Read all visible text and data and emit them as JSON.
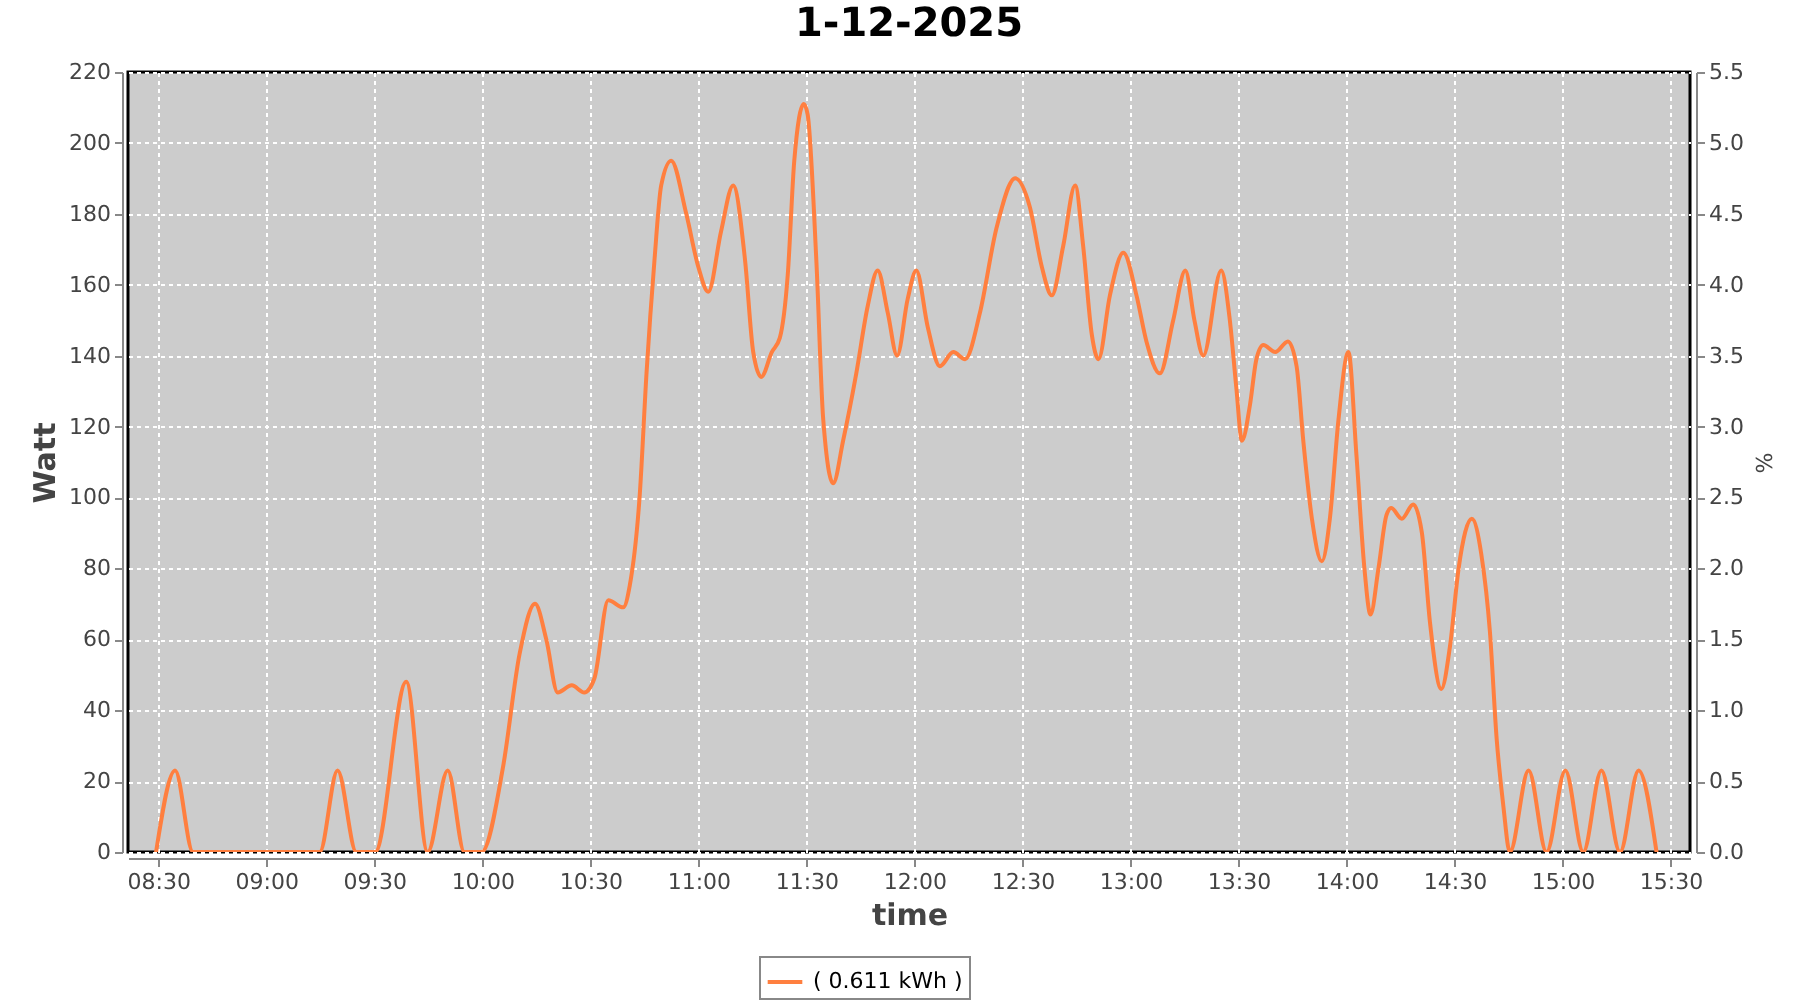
{
  "chart_data": {
    "type": "line",
    "title": "1-12-2025",
    "xlabel": "time",
    "ylabel": "Watt",
    "y2label": "%",
    "x": [
      8.49,
      8.578,
      8.661,
      9.247,
      9.33,
      9.417,
      9.504,
      9.648,
      9.747,
      9.84,
      9.917,
      9.997,
      10.096,
      10.173,
      10.244,
      10.296,
      10.349,
      10.414,
      10.472,
      10.519,
      10.583,
      10.652,
      10.682,
      10.729,
      10.76,
      10.797,
      10.828,
      10.874,
      10.944,
      11.0,
      11.046,
      11.105,
      11.161,
      11.216,
      11.254,
      11.291,
      11.34,
      11.377,
      11.414,
      11.444,
      11.488,
      11.506,
      11.546,
      11.578,
      11.624,
      11.67,
      11.731,
      11.784,
      11.83,
      11.877,
      11.92,
      11.969,
      12.009,
      12.062,
      12.118,
      12.18,
      12.235,
      12.303,
      12.38,
      12.467,
      12.534,
      12.59,
      12.636,
      12.689,
      12.744,
      12.781,
      12.821,
      12.852,
      12.905,
      12.967,
      13.028,
      13.074,
      13.136,
      13.198,
      13.254,
      13.296,
      13.337,
      13.42,
      13.46,
      13.49,
      13.516,
      13.553,
      13.583,
      13.615,
      13.67,
      13.729,
      13.769,
      13.8,
      13.84,
      13.886,
      13.923,
      13.963,
      14.009,
      14.046,
      14.083,
      14.111,
      14.148,
      14.185,
      14.207,
      14.256,
      14.309,
      14.349,
      14.386,
      14.439,
      14.479,
      14.519,
      14.58,
      14.624,
      14.664,
      14.695,
      14.726,
      14.756,
      14.843,
      14.926,
      15.013,
      15.096,
      15.18,
      15.266,
      15.352,
      15.435
    ],
    "series": [
      {
        "name": "( 0.611 kWh )",
        "color": "#ff7f3f",
        "values": [
          0,
          23,
          0,
          0,
          23,
          0,
          0,
          48,
          0,
          23,
          0,
          0,
          24,
          56,
          70,
          60,
          45,
          47,
          45,
          49,
          71,
          69,
          75,
          101,
          135,
          167,
          188,
          195,
          180,
          165,
          158,
          175,
          188,
          167,
          141,
          134,
          141,
          145,
          163,
          195,
          211,
          208,
          167,
          122,
          104,
          116,
          135,
          154,
          164,
          152,
          140,
          156,
          164,
          148,
          137,
          141,
          139,
          152,
          176,
          190,
          182,
          165,
          157,
          171,
          188,
          171,
          146,
          139,
          157,
          169,
          157,
          144,
          135,
          150,
          164,
          150,
          140,
          164,
          150,
          131,
          116,
          126,
          139,
          143,
          141,
          144,
          137,
          116,
          94,
          82,
          94,
          122,
          141,
          112,
          80,
          67,
          80,
          95,
          97,
          94,
          98,
          90,
          65,
          46,
          58,
          80,
          94,
          84,
          62,
          32,
          13,
          0,
          23,
          0,
          23,
          0,
          23,
          0,
          23,
          0
        ]
      }
    ],
    "xlim": [
      8.36,
      15.59
    ],
    "xticks": [
      {
        "value": 8.5,
        "label": "08:30"
      },
      {
        "value": 9,
        "label": "09:00"
      },
      {
        "value": 9.5,
        "label": "09:30"
      },
      {
        "value": 10,
        "label": "10:00"
      },
      {
        "value": 10.5,
        "label": "10:30"
      },
      {
        "value": 11,
        "label": "11:00"
      },
      {
        "value": 11.5,
        "label": "11:30"
      },
      {
        "value": 12,
        "label": "12:00"
      },
      {
        "value": 12.5,
        "label": "12:30"
      },
      {
        "value": 13,
        "label": "13:00"
      },
      {
        "value": 13.5,
        "label": "13:30"
      },
      {
        "value": 14,
        "label": "14:00"
      },
      {
        "value": 14.5,
        "label": "14:30"
      },
      {
        "value": 15,
        "label": "15:00"
      },
      {
        "value": 15.5,
        "label": "15:30"
      }
    ],
    "ylim": [
      0,
      220
    ],
    "yticks": [
      0,
      20,
      40,
      60,
      80,
      100,
      120,
      140,
      160,
      180,
      200,
      220
    ],
    "y2lim": [
      0,
      5.5
    ],
    "y2ticks": [
      {
        "value": 0,
        "label": "0.0"
      },
      0.5,
      {
        "value": 1,
        "label": "1.0"
      },
      1.5,
      {
        "value": 2,
        "label": "2.0"
      },
      2.5,
      {
        "value": 3,
        "label": "3.0"
      },
      3.5,
      {
        "value": 4,
        "label": "4.0"
      },
      4.5,
      {
        "value": 5,
        "label": "5.0"
      },
      5.5
    ],
    "grid": true,
    "legend": "bottom",
    "line_style": "solid"
  }
}
